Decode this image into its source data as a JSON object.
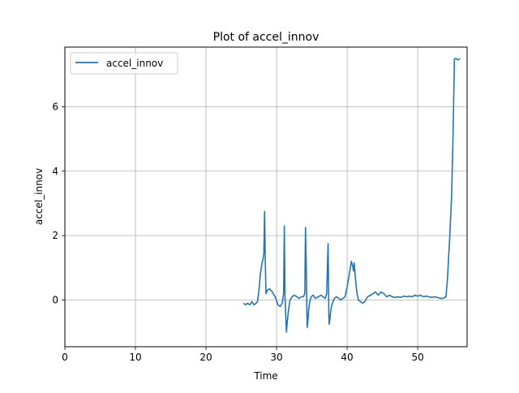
{
  "chart_data": {
    "type": "line",
    "title": "Plot of accel_innov",
    "xlabel": "Time",
    "ylabel": "accel_innov",
    "xlim": [
      0,
      57
    ],
    "ylim": [
      -1.45,
      7.85
    ],
    "xticks": [
      0,
      10,
      20,
      30,
      40,
      50
    ],
    "yticks": [
      0,
      2,
      4,
      6
    ],
    "grid": true,
    "legend_position": "top-left",
    "series": [
      {
        "name": "accel_innov",
        "color": "#1f77b4",
        "x": [
          25.3,
          25.6,
          25.9,
          26.2,
          26.5,
          26.8,
          27.1,
          27.3,
          27.5,
          27.7,
          27.9,
          28.1,
          28.2,
          28.3,
          28.4,
          28.5,
          28.7,
          29.0,
          29.4,
          29.8,
          30.2,
          30.5,
          30.8,
          31.0,
          31.1,
          31.2,
          31.3,
          31.4,
          31.5,
          31.7,
          31.9,
          32.2,
          32.5,
          32.9,
          33.2,
          33.5,
          33.8,
          34.0,
          34.1,
          34.2,
          34.3,
          34.35,
          34.45,
          34.55,
          34.7,
          34.9,
          35.2,
          35.5,
          35.9,
          36.3,
          36.6,
          36.9,
          37.1,
          37.2,
          37.3,
          37.35,
          37.4,
          37.45,
          37.55,
          37.7,
          37.9,
          38.2,
          38.5,
          38.8,
          39.1,
          39.4,
          39.7,
          40.0,
          40.3,
          40.6,
          40.8,
          40.9,
          41.0,
          41.2,
          41.4,
          41.6,
          41.9,
          42.2,
          42.5,
          42.9,
          43.3,
          43.7,
          44.0,
          44.4,
          44.8,
          45.2,
          45.6,
          46.0,
          46.4,
          46.8,
          47.2,
          47.6,
          48.0,
          48.4,
          48.8,
          49.2,
          49.6,
          50.0,
          50.4,
          50.8,
          51.2,
          51.6,
          52.0,
          52.4,
          52.8,
          53.2,
          53.6,
          54.0,
          54.2,
          54.5,
          54.8,
          55.0,
          55.2,
          55.4,
          55.7,
          56.0
        ],
        "y": [
          -0.1,
          -0.15,
          -0.1,
          -0.15,
          -0.05,
          -0.15,
          -0.1,
          -0.05,
          0.3,
          0.8,
          1.1,
          1.3,
          1.45,
          2.75,
          1.2,
          0.2,
          0.3,
          0.35,
          0.25,
          0.1,
          -0.15,
          -0.2,
          -0.1,
          0.2,
          2.3,
          0.1,
          -0.5,
          -1.0,
          -0.7,
          -0.3,
          0.0,
          0.1,
          0.15,
          0.1,
          0.05,
          0.1,
          0.1,
          0.2,
          2.25,
          1.1,
          -0.4,
          -0.85,
          -0.6,
          -0.3,
          -0.05,
          0.1,
          0.15,
          0.05,
          0.1,
          0.15,
          0.1,
          0.05,
          0.2,
          1.0,
          1.75,
          0.8,
          -0.4,
          -0.75,
          -0.6,
          -0.3,
          -0.1,
          0.05,
          0.1,
          0.05,
          0.0,
          0.05,
          0.1,
          0.4,
          0.8,
          1.2,
          1.05,
          0.9,
          1.15,
          0.6,
          0.2,
          0.0,
          -0.05,
          -0.1,
          -0.05,
          0.1,
          0.15,
          0.2,
          0.25,
          0.15,
          0.25,
          0.2,
          0.1,
          0.15,
          0.1,
          0.08,
          0.1,
          0.08,
          0.12,
          0.1,
          0.12,
          0.1,
          0.15,
          0.12,
          0.15,
          0.1,
          0.12,
          0.1,
          0.08,
          0.1,
          0.08,
          0.05,
          0.05,
          0.1,
          0.6,
          1.8,
          3.2,
          5.0,
          7.48,
          7.5,
          7.45,
          7.5
        ]
      }
    ]
  }
}
